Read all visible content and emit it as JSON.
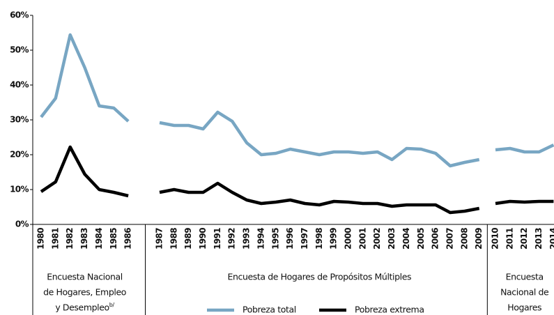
{
  "chart_data": {
    "type": "line",
    "categories": [
      "1980",
      "1981",
      "1982",
      "1983",
      "1984",
      "1985",
      "1986",
      "1987",
      "1988",
      "1989",
      "1990",
      "1991",
      "1992",
      "1993",
      "1994",
      "1995",
      "1996",
      "1997",
      "1998",
      "1999",
      "2000",
      "2001",
      "2002",
      "2003",
      "2004",
      "2005",
      "2006",
      "2007",
      "2008",
      "2009",
      "2010",
      "2011",
      "2012",
      "2013",
      "2014"
    ],
    "groups": [
      {
        "lines": [
          "Encuesta Nacional",
          "de Hogares, Empleo",
          "y Desempleo"
        ],
        "superscript": "b/",
        "start": 0,
        "end": 6
      },
      {
        "lines": [
          "Encuesta de Hogares de Propósitos Múltiples"
        ],
        "start": 7,
        "end": 29
      },
      {
        "lines": [
          "Encuesta",
          "Nacional de",
          "Hogares"
        ],
        "start": 30,
        "end": 34
      }
    ],
    "series": [
      {
        "name": "Pobreza total",
        "color": "#78a6c3",
        "values": [
          30.8,
          36.2,
          54.4,
          45,
          34,
          33.4,
          29.6,
          29.2,
          28.4,
          28.4,
          27.4,
          32.2,
          29.6,
          23.4,
          20,
          20.4,
          21.6,
          20.8,
          20,
          20.8,
          20.8,
          20.4,
          20.8,
          18.6,
          21.8,
          21.6,
          20.4,
          16.8,
          17.8,
          18.6,
          21.4,
          21.8,
          20.8,
          20.8,
          22.8
        ]
      },
      {
        "name": "Pobreza extrema",
        "color": "#000000",
        "values": [
          9.4,
          12.2,
          22.2,
          14.4,
          10,
          9.2,
          8.2,
          9.2,
          10,
          9.2,
          9.2,
          11.8,
          9.2,
          7,
          6,
          6.4,
          7,
          6,
          5.6,
          6.6,
          6.4,
          6,
          6,
          5.2,
          5.6,
          5.6,
          5.6,
          3.4,
          3.8,
          4.6,
          6,
          6.6,
          6.4,
          6.6,
          6.6
        ]
      }
    ],
    "ylim": [
      0,
      60
    ],
    "yticks": [
      {
        "value": 0,
        "label": "0%"
      },
      {
        "value": 10,
        "label": "10%"
      },
      {
        "value": 20,
        "label": "20%"
      },
      {
        "value": 30,
        "label": "30%"
      },
      {
        "value": 40,
        "label": "40%"
      },
      {
        "value": 50,
        "label": "50%"
      },
      {
        "value": 60,
        "label": "60%"
      }
    ],
    "grid": false
  }
}
